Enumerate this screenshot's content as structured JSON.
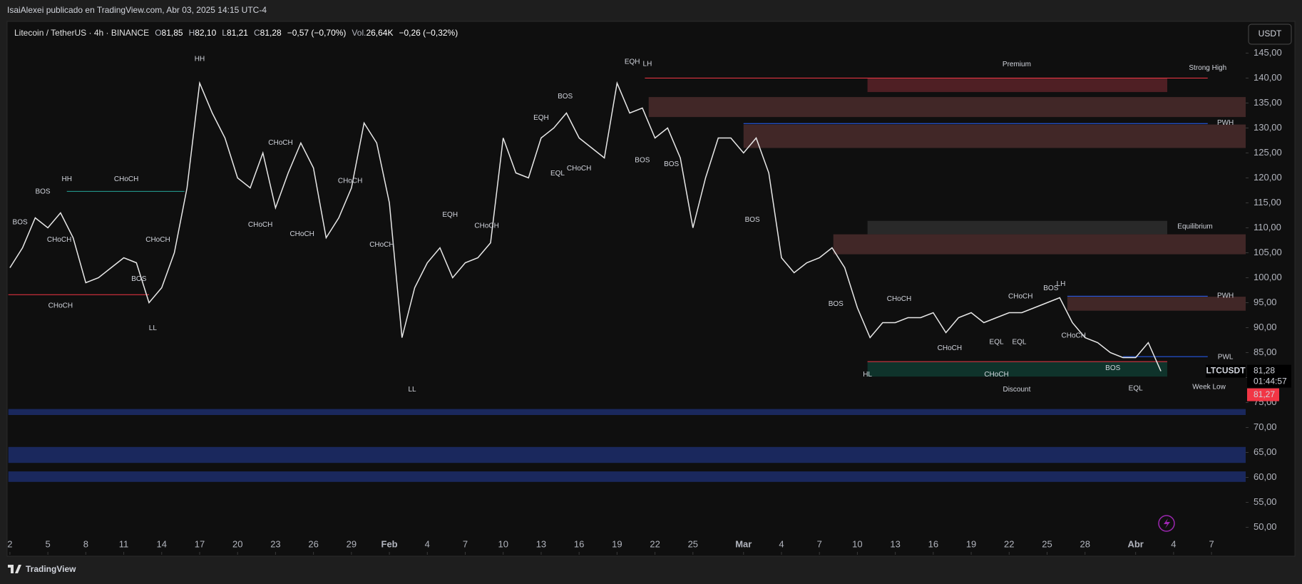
{
  "header": {
    "publisher": "IsaiAlexei publicado en TradingView.com, Abr 03, 2025 14:15 UTC-4",
    "currency_button": "USDT",
    "footer_brand": "TradingView",
    "countdown": "01:44:57"
  },
  "legend": {
    "symbol": "Litecoin / TetherUS · 4h · BINANCE",
    "items": [
      {
        "key": "O",
        "value": 81.85,
        "label": "81,85"
      },
      {
        "key": "H",
        "value": 82.1,
        "label": "82,10"
      },
      {
        "key": "L",
        "value": 81.21,
        "label": "81,21"
      },
      {
        "key": "C",
        "value": 81.28,
        "label": "81,28"
      }
    ],
    "change": {
      "value": -0.57,
      "label": "−0,57 (−0,70%)"
    },
    "volume": {
      "key": "Vol.",
      "value": 26640,
      "label": "26,64K"
    },
    "volume_change": {
      "value": -0.26,
      "label": "−0,26 (−0,32%)"
    }
  },
  "chart_data": {
    "type": "line",
    "xlim": [
      1.87,
      99.7
    ],
    "ylim": [
      44.5,
      151
    ],
    "xticks": [
      {
        "value": 2,
        "label": "2"
      },
      {
        "value": 5,
        "label": "5"
      },
      {
        "value": 8,
        "label": "8"
      },
      {
        "value": 11,
        "label": "11"
      },
      {
        "value": 14,
        "label": "14"
      },
      {
        "value": 17,
        "label": "17"
      },
      {
        "value": 20,
        "label": "20"
      },
      {
        "value": 23,
        "label": "23"
      },
      {
        "value": 26,
        "label": "26"
      },
      {
        "value": 29,
        "label": "29"
      },
      {
        "value": 32,
        "label": "Feb"
      },
      {
        "value": 35,
        "label": "4"
      },
      {
        "value": 38,
        "label": "7"
      },
      {
        "value": 41,
        "label": "10"
      },
      {
        "value": 44,
        "label": "13"
      },
      {
        "value": 47,
        "label": "16"
      },
      {
        "value": 50,
        "label": "19"
      },
      {
        "value": 53,
        "label": "22"
      },
      {
        "value": 56,
        "label": "25"
      },
      {
        "value": 60,
        "label": "Mar"
      },
      {
        "value": 63,
        "label": "4"
      },
      {
        "value": 66,
        "label": "7"
      },
      {
        "value": 69,
        "label": "10"
      },
      {
        "value": 72,
        "label": "13"
      },
      {
        "value": 75,
        "label": "16"
      },
      {
        "value": 78,
        "label": "19"
      },
      {
        "value": 81,
        "label": "22"
      },
      {
        "value": 84,
        "label": "25"
      },
      {
        "value": 87,
        "label": "28"
      },
      {
        "value": 91,
        "label": "Abr"
      },
      {
        "value": 94,
        "label": "4"
      },
      {
        "value": 97,
        "label": "7"
      }
    ],
    "yticks": [
      {
        "value": 50,
        "label": "50,00"
      },
      {
        "value": 55,
        "label": "55,00"
      },
      {
        "value": 60,
        "label": "60,00"
      },
      {
        "value": 65,
        "label": "65,00"
      },
      {
        "value": 70,
        "label": "70,00"
      },
      {
        "value": 75,
        "label": "75,00"
      },
      {
        "value": 80,
        "label": "80,00"
      },
      {
        "value": 85,
        "label": "85,00"
      },
      {
        "value": 90,
        "label": "90,00"
      },
      {
        "value": 95,
        "label": "95,00"
      },
      {
        "value": 100,
        "label": "100,00"
      },
      {
        "value": 105,
        "label": "105,00"
      },
      {
        "value": 110,
        "label": "110,00"
      },
      {
        "value": 115,
        "label": "115,00"
      },
      {
        "value": 120,
        "label": "120,00"
      },
      {
        "value": 125,
        "label": "125,00"
      },
      {
        "value": 130,
        "label": "130,00"
      },
      {
        "value": 135,
        "label": "135,00"
      },
      {
        "value": 140,
        "label": "140,00"
      },
      {
        "value": 145,
        "label": "145,00"
      }
    ],
    "x": [
      2,
      3,
      4,
      5,
      6,
      7,
      8,
      9,
      10,
      11,
      12,
      13,
      14,
      15,
      16,
      17,
      18,
      19,
      20,
      21,
      22,
      23,
      24,
      25,
      26,
      27,
      28,
      29,
      30,
      31,
      32,
      33,
      34,
      35,
      36,
      37,
      38,
      39,
      40,
      41,
      42,
      43,
      44,
      45,
      46,
      47,
      48,
      49,
      50,
      51,
      52,
      53,
      54,
      55,
      56,
      57,
      58,
      59,
      60,
      61,
      62,
      63,
      64,
      65,
      66,
      67,
      68,
      69,
      70,
      71,
      72,
      73,
      74,
      75,
      76,
      77,
      78,
      79,
      80,
      81,
      82,
      83,
      84,
      85,
      86,
      87,
      88,
      89,
      90,
      91,
      92,
      93
    ],
    "series": [
      {
        "name": "LTCUSDT",
        "color": "#e8e8e8",
        "values": [
          102,
          106,
          112,
          110,
          113,
          108,
          99,
          100,
          102,
          104,
          103,
          95,
          98,
          105,
          118,
          139,
          133,
          128,
          120,
          118,
          125,
          114,
          121,
          127,
          122,
          108,
          112,
          118,
          131,
          127,
          115,
          88,
          98,
          103,
          106,
          100,
          103,
          104,
          107,
          128,
          121,
          120,
          128,
          130,
          133,
          128,
          126,
          124,
          139,
          133,
          134,
          128,
          130,
          124,
          110,
          120,
          128,
          128,
          125,
          128,
          121,
          104,
          101,
          103,
          104,
          106,
          102,
          94,
          88,
          91,
          91,
          92,
          92,
          93,
          89,
          92,
          93,
          91,
          92,
          93,
          93,
          94,
          95,
          96,
          91,
          88,
          87,
          85,
          84,
          84,
          87,
          81.28
        ]
      }
    ],
    "last_price": {
      "value": 81.28,
      "label": "81,28"
    },
    "bid_price": {
      "value": 81.27,
      "label": "81,27"
    },
    "zones": [
      {
        "x0": 69.8,
        "x1": 93.5,
        "y0": 137.2,
        "y1": 140,
        "color": "#5a2228"
      },
      {
        "x0": 52.5,
        "x1": 99.7,
        "y0": 132.2,
        "y1": 136.2,
        "color": "#4a2b2b"
      },
      {
        "x0": 60,
        "x1": 99.7,
        "y0": 126,
        "y1": 130.7,
        "color": "#4a2b2b"
      },
      {
        "x0": 69.8,
        "x1": 93.5,
        "y0": 108.7,
        "y1": 111.4,
        "color": "#2e2e2e"
      },
      {
        "x0": 67.1,
        "x1": 99.7,
        "y0": 104.7,
        "y1": 108.7,
        "color": "#4a2b2b"
      },
      {
        "x0": 85.6,
        "x1": 99.7,
        "y0": 93.4,
        "y1": 96.2,
        "color": "#4a2b2b"
      },
      {
        "x0": 69.8,
        "x1": 93.5,
        "y0": 80.2,
        "y1": 83.2,
        "color": "#0f3a30"
      },
      {
        "x0": 1.87,
        "x1": 99.7,
        "y0": 72.5,
        "y1": 73.7,
        "color": "#1c2d6b"
      },
      {
        "x0": 1.87,
        "x1": 99.7,
        "y0": 62.9,
        "y1": 66.1,
        "color": "#1c2d6b"
      },
      {
        "x0": 1.87,
        "x1": 99.7,
        "y0": 59.1,
        "y1": 61.2,
        "color": "#1c2d6b"
      }
    ],
    "levels": [
      {
        "y": 140,
        "x0": 52.2,
        "x1": 96.7,
        "color": "#f23645"
      },
      {
        "y": 130.9,
        "x0": 60,
        "x1": 96.7,
        "color": "#2962ff"
      },
      {
        "y": 96.3,
        "x0": 85.6,
        "x1": 96.7,
        "color": "#2962ff"
      },
      {
        "y": 84.2,
        "x0": 90,
        "x1": 96.7,
        "color": "#2962ff"
      },
      {
        "y": 96.6,
        "x0": 1.87,
        "x1": 13,
        "color": "#f23645"
      },
      {
        "y": 117.3,
        "x0": 6.5,
        "x1": 15.8,
        "color": "#26a69a"
      },
      {
        "y": 83.2,
        "x0": 69.8,
        "x1": 93.5,
        "color": "#f23645"
      }
    ],
    "annotations": [
      {
        "text": "HH",
        "x": 17.0,
        "y": 143.8,
        "color": "#f23645"
      },
      {
        "text": "HH",
        "x": 6.5,
        "y": 119.7,
        "color": "#f23645"
      },
      {
        "text": "BOS",
        "x": 4.6,
        "y": 117.2,
        "color": "#26a69a"
      },
      {
        "text": "BOS",
        "x": 2.8,
        "y": 111.1,
        "color": "#26a69a"
      },
      {
        "text": "CHoCH",
        "x": 11.2,
        "y": 119.7,
        "color": "#26a69a"
      },
      {
        "text": "CHoCH",
        "x": 5.9,
        "y": 107.6,
        "color": "#f23645"
      },
      {
        "text": "CHoCH",
        "x": 13.7,
        "y": 107.6,
        "color": "#26a69a"
      },
      {
        "text": "BOS",
        "x": 12.2,
        "y": 99.7,
        "color": "#f23645"
      },
      {
        "text": "CHoCH",
        "x": 6.0,
        "y": 94.4,
        "color": "#f23645"
      },
      {
        "text": "LL",
        "x": 13.3,
        "y": 89.9,
        "color": "#26a69a"
      },
      {
        "text": "CHoCH",
        "x": 23.4,
        "y": 127.0,
        "color": "#26a69a"
      },
      {
        "text": "CHoCH",
        "x": 21.8,
        "y": 110.6,
        "color": "#f23645"
      },
      {
        "text": "CHoCH",
        "x": 25.1,
        "y": 108.7,
        "color": "#f23645"
      },
      {
        "text": "CHoCH",
        "x": 28.9,
        "y": 119.4,
        "color": "#26a69a"
      },
      {
        "text": "CHoCH",
        "x": 31.4,
        "y": 106.6,
        "color": "#f23645"
      },
      {
        "text": "EQH",
        "x": 36.8,
        "y": 112.6,
        "color": "#f23645"
      },
      {
        "text": "LL",
        "x": 33.8,
        "y": 77.6,
        "color": "#26a69a"
      },
      {
        "text": "CHoCH",
        "x": 39.7,
        "y": 110.4,
        "color": "#26a69a"
      },
      {
        "text": "BOS",
        "x": 45.9,
        "y": 136.3,
        "color": "#26a69a"
      },
      {
        "text": "EQH",
        "x": 44.0,
        "y": 132.0,
        "color": "#f23645"
      },
      {
        "text": "EQL",
        "x": 45.3,
        "y": 120.9,
        "color": "#26a69a"
      },
      {
        "text": "CHoCH",
        "x": 47.0,
        "y": 121.9,
        "color": "#f23645"
      },
      {
        "text": "EQH",
        "x": 51.2,
        "y": 143.2,
        "color": "#f23645"
      },
      {
        "text": "LH",
        "x": 52.4,
        "y": 142.8,
        "color": "#f23645"
      },
      {
        "text": "BOS",
        "x": 52.0,
        "y": 123.5,
        "color": "#f23645"
      },
      {
        "text": "BOS",
        "x": 54.3,
        "y": 122.7,
        "color": "#f23645"
      },
      {
        "text": "BOS",
        "x": 60.7,
        "y": 111.6,
        "color": "#f23645"
      },
      {
        "text": "Premium",
        "x": 81.6,
        "y": 142.7,
        "color": "#f23645"
      },
      {
        "text": "Strong High",
        "x": 96.7,
        "y": 142.0,
        "color": "#f23645"
      },
      {
        "text": "PWH",
        "x": 98.1,
        "y": 131.0,
        "color": "#2962ff"
      },
      {
        "text": "Equilibrium",
        "x": 95.7,
        "y": 110.2,
        "color": "#9598a1"
      },
      {
        "text": "BOS",
        "x": 67.3,
        "y": 94.7,
        "color": "#f23645"
      },
      {
        "text": "CHoCH",
        "x": 72.3,
        "y": 95.7,
        "color": "#26a69a"
      },
      {
        "text": "CHoCH",
        "x": 76.3,
        "y": 85.9,
        "color": "#f23645"
      },
      {
        "text": "EQL",
        "x": 80.0,
        "y": 87.1,
        "color": "#26a69a"
      },
      {
        "text": "EQL",
        "x": 81.8,
        "y": 87.1,
        "color": "#26a69a"
      },
      {
        "text": "CHoCH",
        "x": 81.9,
        "y": 96.2,
        "color": "#26a69a"
      },
      {
        "text": "BOS",
        "x": 84.3,
        "y": 97.9,
        "color": "#26a69a"
      },
      {
        "text": "LH",
        "x": 85.1,
        "y": 98.7,
        "color": "#f23645"
      },
      {
        "text": "CHoCH",
        "x": 86.1,
        "y": 88.4,
        "color": "#f23645"
      },
      {
        "text": "PWH",
        "x": 98.1,
        "y": 96.4,
        "color": "#2962ff"
      },
      {
        "text": "PWL",
        "x": 98.1,
        "y": 84.1,
        "color": "#2962ff"
      },
      {
        "text": "BOS",
        "x": 89.2,
        "y": 81.9,
        "color": "#f23645"
      },
      {
        "text": "HL",
        "x": 69.8,
        "y": 80.6,
        "color": "#26a69a"
      },
      {
        "text": "CHoCH",
        "x": 80.0,
        "y": 80.6,
        "color": "#f23645"
      },
      {
        "text": "Discount",
        "x": 81.6,
        "y": 77.6,
        "color": "#26a69a"
      },
      {
        "text": "EQL",
        "x": 91.0,
        "y": 77.8,
        "color": "#26a69a"
      },
      {
        "text": "Week Low",
        "x": 96.8,
        "y": 78.1,
        "color": "#26a69a"
      }
    ]
  }
}
